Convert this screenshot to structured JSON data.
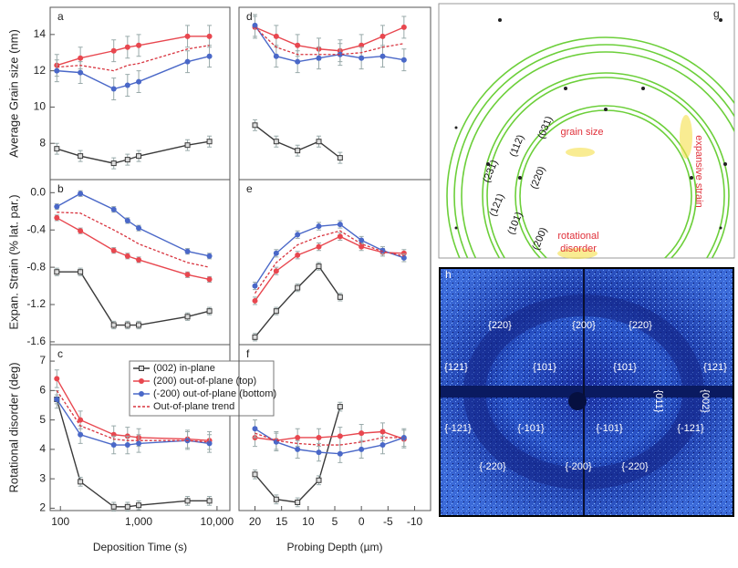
{
  "chart_data": [
    {
      "type": "line",
      "label": "a",
      "ylabel": "Average Grain size (nm)",
      "xscale": "log",
      "xlim": [
        74,
        14600
      ],
      "ylim": [
        6,
        15.5
      ],
      "yticks": [
        8,
        10,
        12,
        14
      ],
      "series": [
        {
          "color": "#3a3a3a",
          "marker": "square",
          "error": 0.3,
          "x": [
            90,
            180,
            480,
            720,
            1000,
            4200,
            8000
          ],
          "values": [
            7.7,
            7.3,
            6.9,
            7.1,
            7.3,
            7.9,
            8.1
          ]
        },
        {
          "color": "#e8474f",
          "marker": "circle",
          "error": 0.6,
          "x": [
            90,
            180,
            480,
            720,
            1000,
            4200,
            8000
          ],
          "values": [
            12.3,
            12.7,
            13.1,
            13.3,
            13.4,
            13.9,
            13.9
          ]
        },
        {
          "color": "#4a68c8",
          "marker": "circle",
          "error": 0.6,
          "x": [
            90,
            180,
            480,
            720,
            1000,
            4200,
            8000
          ],
          "values": [
            12.0,
            11.9,
            11.0,
            11.2,
            11.4,
            12.5,
            12.8
          ]
        },
        {
          "color": "#d8343f",
          "marker": "none",
          "dash": true,
          "x": [
            90,
            180,
            480,
            720,
            1000,
            4200,
            8000
          ],
          "values": [
            12.2,
            12.3,
            12.0,
            12.3,
            12.4,
            13.2,
            13.4
          ]
        }
      ]
    },
    {
      "type": "line",
      "label": "d",
      "xlim": [
        23,
        -13
      ],
      "ylim": [
        6,
        15.5
      ],
      "series": [
        {
          "color": "#3a3a3a",
          "marker": "square",
          "error": 0.3,
          "x": [
            20,
            16,
            12,
            8,
            4
          ],
          "values": [
            9.0,
            8.1,
            7.6,
            8.1,
            7.2
          ]
        },
        {
          "color": "#e8474f",
          "marker": "circle",
          "error": 0.6,
          "x": [
            20,
            16,
            12,
            8,
            4,
            0,
            -4,
            -8
          ],
          "values": [
            14.4,
            13.9,
            13.4,
            13.2,
            13.1,
            13.4,
            13.9,
            14.4
          ]
        },
        {
          "color": "#4a68c8",
          "marker": "circle",
          "error": 0.6,
          "x": [
            20,
            16,
            12,
            8,
            4,
            0,
            -4,
            -8
          ],
          "values": [
            14.5,
            12.8,
            12.5,
            12.7,
            12.9,
            12.7,
            12.8,
            12.6
          ]
        },
        {
          "color": "#d8343f",
          "marker": "none",
          "dash": true,
          "x": [
            20,
            16,
            12,
            8,
            4,
            0,
            -4,
            -8
          ],
          "values": [
            14.4,
            13.3,
            12.9,
            12.9,
            12.9,
            13.0,
            13.3,
            13.5
          ]
        }
      ]
    },
    {
      "type": "line",
      "label": "b",
      "ylabel": "Expan. Strain (% lat. par.)",
      "xscale": "log",
      "xlim": [
        74,
        14600
      ],
      "ylim": [
        -1.63,
        0.14
      ],
      "yticks": [
        {
          "value": 0,
          "label": "0.0"
        },
        -0.4,
        -0.8,
        -1.2,
        -1.6
      ],
      "series": [
        {
          "color": "#3a3a3a",
          "marker": "square",
          "error": 0.04,
          "x": [
            90,
            180,
            480,
            720,
            1000,
            4200,
            8000
          ],
          "values": [
            -0.85,
            -0.85,
            -1.42,
            -1.42,
            -1.42,
            -1.33,
            -1.27
          ]
        },
        {
          "color": "#e8474f",
          "marker": "circle",
          "error": 0.03,
          "x": [
            90,
            180,
            480,
            720,
            1000,
            4200,
            8000
          ],
          "values": [
            -0.27,
            -0.41,
            -0.62,
            -0.68,
            -0.72,
            -0.88,
            -0.93
          ]
        },
        {
          "color": "#4a68c8",
          "marker": "circle",
          "error": 0.03,
          "x": [
            90,
            180,
            480,
            720,
            1000,
            4200,
            8000
          ],
          "values": [
            -0.15,
            -0.01,
            -0.18,
            -0.3,
            -0.38,
            -0.63,
            -0.68
          ]
        },
        {
          "color": "#d8343f",
          "marker": "none",
          "dash": true,
          "x": [
            90,
            180,
            480,
            720,
            1000,
            4200,
            8000
          ],
          "values": [
            -0.21,
            -0.22,
            -0.4,
            -0.48,
            -0.55,
            -0.75,
            -0.8
          ]
        }
      ]
    },
    {
      "type": "line",
      "label": "e",
      "xlim": [
        23,
        -13
      ],
      "ylim": [
        -1.63,
        0.14
      ],
      "series": [
        {
          "color": "#3a3a3a",
          "marker": "square",
          "error": 0.04,
          "x": [
            20,
            16,
            12,
            8,
            4
          ],
          "values": [
            -1.55,
            -1.27,
            -1.02,
            -0.79,
            -1.12
          ]
        },
        {
          "color": "#e8474f",
          "marker": "circle",
          "error": 0.04,
          "x": [
            20,
            16,
            12,
            8,
            4,
            0,
            -4,
            -8
          ],
          "values": [
            -1.16,
            -0.84,
            -0.67,
            -0.58,
            -0.47,
            -0.58,
            -0.64,
            -0.65
          ]
        },
        {
          "color": "#4a68c8",
          "marker": "circle",
          "error": 0.04,
          "x": [
            20,
            16,
            12,
            8,
            4,
            0,
            -4,
            -8
          ],
          "values": [
            -1.0,
            -0.65,
            -0.45,
            -0.36,
            -0.34,
            -0.51,
            -0.62,
            -0.7
          ]
        },
        {
          "color": "#d8343f",
          "marker": "none",
          "dash": true,
          "x": [
            20,
            16,
            12,
            8,
            4,
            0,
            -4,
            -8
          ],
          "values": [
            -1.08,
            -0.75,
            -0.56,
            -0.47,
            -0.41,
            -0.55,
            -0.63,
            -0.68
          ]
        }
      ]
    },
    {
      "type": "line",
      "label": "c",
      "ylabel": "Rotational disorder (deg)",
      "xlabel": "Deposition Time (s)",
      "xscale": "log",
      "xlim": [
        74,
        14600
      ],
      "ylim": [
        1.92,
        7.56
      ],
      "yticks": [
        2,
        3,
        4,
        5,
        6,
        7
      ],
      "xticks": [
        100,
        {
          "value": 1000,
          "label": "1,000"
        },
        {
          "value": 10000,
          "label": "10,000"
        }
      ],
      "series": [
        {
          "name": "(002) in-plane",
          "color": "#3a3a3a",
          "marker": "square",
          "error": 0.15,
          "x": [
            90,
            180,
            480,
            720,
            1000,
            4200,
            8000
          ],
          "values": [
            5.7,
            2.9,
            2.05,
            2.05,
            2.1,
            2.25,
            2.25
          ]
        },
        {
          "name": "(200) out-of-plane (top)",
          "color": "#e8474f",
          "marker": "circle",
          "error": 0.3,
          "x": [
            90,
            180,
            480,
            720,
            1000,
            4200,
            8000
          ],
          "values": [
            6.4,
            5.0,
            4.5,
            4.45,
            4.4,
            4.35,
            4.3
          ]
        },
        {
          "name": "(-200) out-of-plane (bottom)",
          "color": "#4a68c8",
          "marker": "circle",
          "error": 0.3,
          "x": [
            90,
            180,
            480,
            720,
            1000,
            4200,
            8000
          ],
          "values": [
            5.7,
            4.5,
            4.15,
            4.15,
            4.2,
            4.3,
            4.2
          ]
        },
        {
          "name": "Out-of-plane trend",
          "color": "#d8343f",
          "marker": "none",
          "dash": true,
          "x": [
            90,
            180,
            480,
            720,
            1000,
            4200,
            8000
          ],
          "values": [
            6.0,
            4.8,
            4.35,
            4.3,
            4.3,
            4.3,
            4.25
          ]
        }
      ]
    },
    {
      "type": "line",
      "label": "f",
      "xlabel": "Probing Depth (µm)",
      "xlim": [
        23,
        -13
      ],
      "ylim": [
        1.92,
        7.56
      ],
      "xticks": [
        20,
        15,
        10,
        5,
        0,
        -5,
        -10
      ],
      "series": [
        {
          "color": "#3a3a3a",
          "marker": "square",
          "error": 0.15,
          "x": [
            20,
            16,
            12,
            8,
            4
          ],
          "values": [
            3.15,
            2.3,
            2.2,
            2.95,
            5.45
          ]
        },
        {
          "color": "#e8474f",
          "marker": "circle",
          "error": 0.3,
          "x": [
            20,
            16,
            12,
            8,
            4,
            0,
            -4,
            -8
          ],
          "values": [
            4.4,
            4.3,
            4.4,
            4.4,
            4.45,
            4.55,
            4.6,
            4.35
          ]
        },
        {
          "color": "#4a68c8",
          "marker": "circle",
          "error": 0.3,
          "x": [
            20,
            16,
            12,
            8,
            4,
            0,
            -4,
            -8
          ],
          "values": [
            4.7,
            4.25,
            4.0,
            3.9,
            3.85,
            4.0,
            4.15,
            4.4
          ]
        },
        {
          "color": "#d8343f",
          "marker": "none",
          "dash": true,
          "x": [
            20,
            16,
            12,
            8,
            4,
            0,
            -4,
            -8
          ],
          "values": [
            4.55,
            4.3,
            4.2,
            4.15,
            4.15,
            4.25,
            4.4,
            4.4
          ]
        }
      ]
    }
  ],
  "images": {
    "g": {
      "label": "g",
      "rings": [
        "(231)",
        "(112)",
        "(031)",
        "(121)",
        "(220)",
        "(101)",
        "(200)"
      ],
      "annotations": [
        "grain size",
        "expansive strain",
        "rotational",
        "disorder"
      ]
    },
    "h": {
      "label": "h",
      "spots": [
        "{220}",
        "{200}",
        "{220}",
        "{121}",
        "{101}",
        "{101}",
        "{121}",
        "{011}",
        "{002}",
        "{-121}",
        "{-101}",
        "{-101}",
        "{-121}",
        "{-220}",
        "{-200}",
        "{-220}"
      ]
    }
  }
}
